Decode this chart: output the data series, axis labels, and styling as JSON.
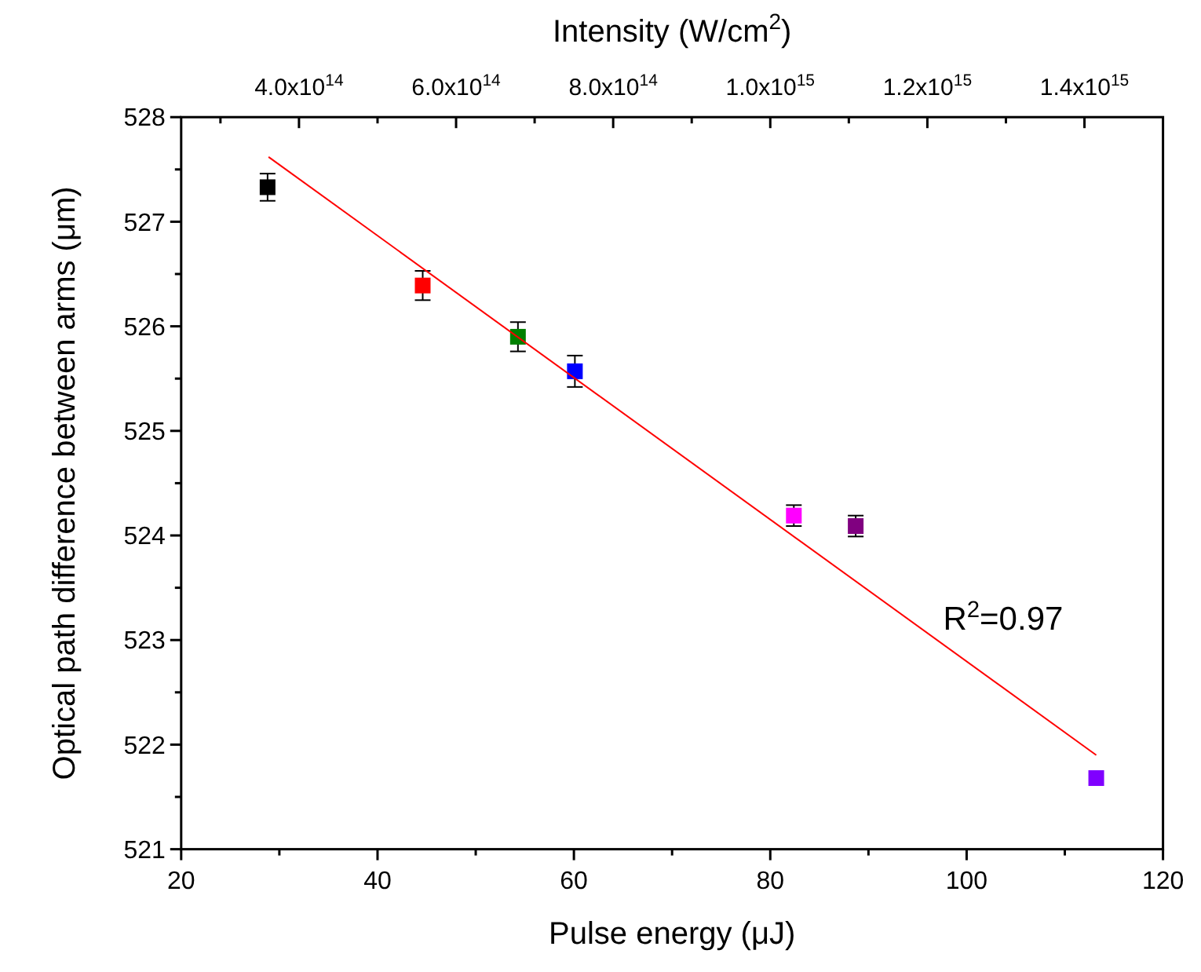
{
  "chart_data": {
    "type": "scatter",
    "xlabel": "Pulse energy (μJ)",
    "ylabel": "Optical path difference between arms (μm)",
    "x2label": "Intensity (W/cm$^{2}$)",
    "xlim": [
      20,
      120
    ],
    "xticks": [
      20,
      {
        "value": 30,
        "label": null
      },
      40,
      {
        "value": 50,
        "label": null
      },
      60,
      {
        "value": 70,
        "label": null
      },
      80,
      {
        "value": 90,
        "label": null
      },
      100,
      {
        "value": 110,
        "label": null
      },
      120
    ],
    "ylim": [
      521,
      528
    ],
    "yticks": [
      521,
      {
        "value": 521.5,
        "label": null
      },
      522,
      {
        "value": 522.5,
        "label": null
      },
      523,
      {
        "value": 523.5,
        "label": null
      },
      524,
      {
        "value": 524.5,
        "label": null
      },
      525,
      {
        "value": 525.5,
        "label": null
      },
      526,
      {
        "value": 526.5,
        "label": null
      },
      527,
      {
        "value": 527.5,
        "label": null
      },
      528
    ],
    "x2lim": [
      250000000000000.0,
      1500000000000000.0
    ],
    "x2ticks": [
      {
        "value": 300000000000000.0,
        "label": null
      },
      {
        "value": 400000000000000.0,
        "label": "4.0x10$^{14}$"
      },
      {
        "value": 500000000000000.0,
        "label": null
      },
      {
        "value": 600000000000000.0,
        "label": "6.0x10$^{14}$"
      },
      {
        "value": 700000000000000.0,
        "label": null
      },
      {
        "value": 800000000000000.0,
        "label": "8.0x10$^{14}$"
      },
      {
        "value": 900000000000000.0,
        "label": null
      },
      {
        "value": 1000000000000000.0,
        "label": "1.0x10$^{15}$"
      },
      {
        "value": 1100000000000000.0,
        "label": null
      },
      {
        "value": 1200000000000000.0,
        "label": "1.2x10$^{15}$"
      },
      {
        "value": 1300000000000000.0,
        "label": null
      },
      {
        "value": 1400000000000000.0,
        "label": "1.4x10$^{15}$"
      }
    ],
    "series": [
      {
        "marker": "square",
        "x": [
          28.8,
          44.6,
          54.3,
          60.1,
          82.4,
          88.7,
          113.2
        ],
        "values": [
          527.33,
          526.39,
          525.9,
          525.57,
          524.19,
          524.09,
          521.68
        ],
        "colors": [
          "#000000",
          "#ff0000",
          "#008000",
          "#0000ff",
          "#ff00ff",
          "#800080",
          "#8000ff"
        ],
        "errors": [
          0.13,
          0.14,
          0.14,
          0.15,
          0.1,
          0.1,
          null
        ]
      },
      {
        "type": "line",
        "x": [
          28.9,
          113.2
        ],
        "values": [
          527.62,
          521.9
        ],
        "color": "#ff0000"
      }
    ],
    "annotations": [
      "R$^{2}$=0.97"
    ]
  }
}
